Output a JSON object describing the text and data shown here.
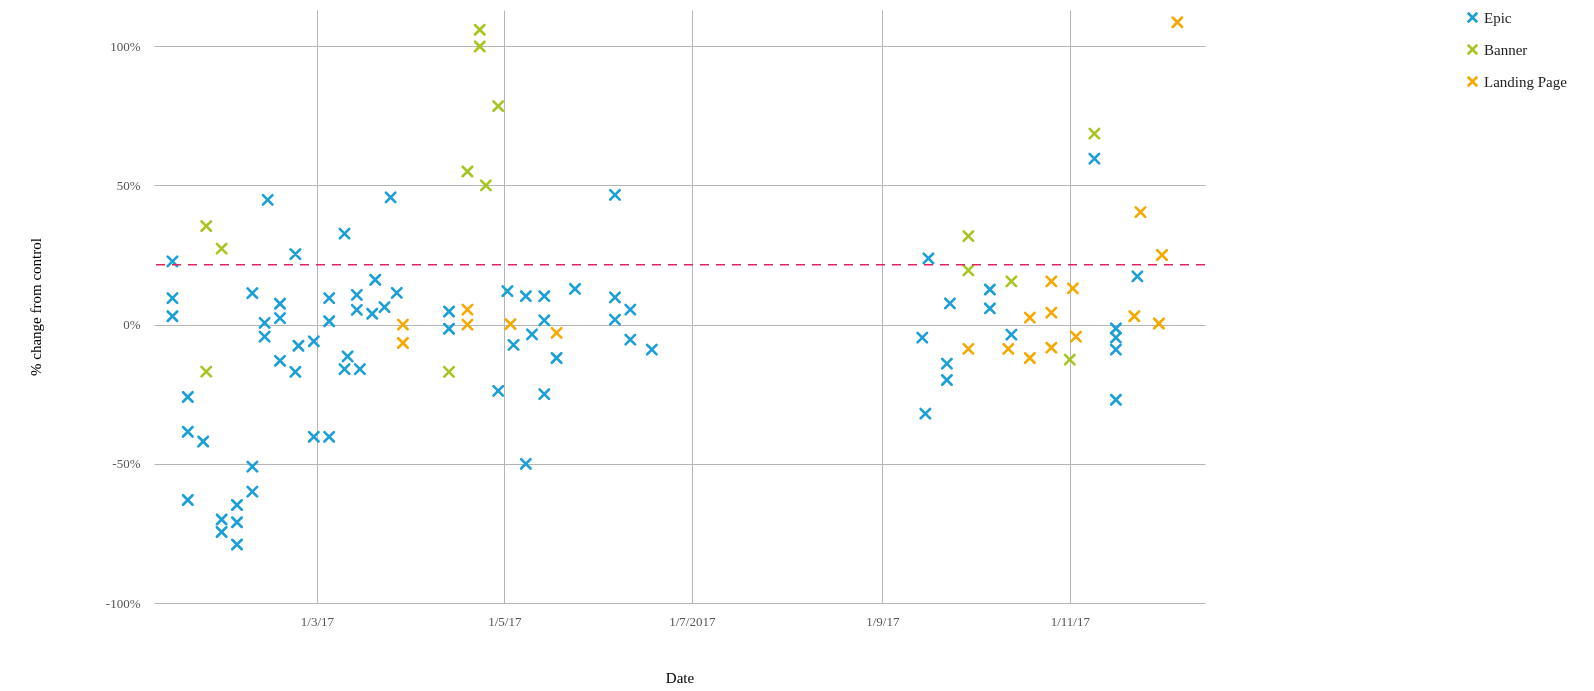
{
  "chart_data": {
    "type": "scatter",
    "xlabel": "Date",
    "ylabel": "% change from control",
    "xlim": [
      "2017-01-07",
      "2017-12-15"
    ],
    "ylim": [
      -100,
      113
    ],
    "xticks": [
      {
        "value": "2017-03-01",
        "label": "1/3/17"
      },
      {
        "value": "2017-05-01",
        "label": "1/5/17"
      },
      {
        "value": "2017-07-01",
        "label": "1/7/2017"
      },
      {
        "value": "2017-09-01",
        "label": "1/9/17"
      },
      {
        "value": "2017-11-01",
        "label": "1/11/17"
      }
    ],
    "yticks": [
      {
        "value": -100,
        "label": "-100%"
      },
      {
        "value": -50,
        "label": "-50%"
      },
      {
        "value": 0,
        "label": "0%"
      },
      {
        "value": 50,
        "label": "50%"
      },
      {
        "value": 100,
        "label": "100%"
      }
    ],
    "grid": true,
    "legend": "top right",
    "marker": "cross",
    "ref_lines": [
      {
        "axis": "y",
        "value": 21.5,
        "label": null,
        "color": "#e0245e",
        "line_style": "dashed"
      }
    ],
    "series": [
      {
        "name": "Epic",
        "color": "#1a9fd6",
        "x": [
          "2017-01-13",
          "2017-01-13",
          "2017-01-13",
          "2017-01-18",
          "2017-01-18",
          "2017-01-18",
          "2017-01-23",
          "2017-01-29",
          "2017-01-29",
          "2017-02-03",
          "2017-02-03",
          "2017-02-03",
          "2017-02-08",
          "2017-02-08",
          "2017-02-08",
          "2017-02-13",
          "2017-02-12",
          "2017-02-12",
          "2017-02-17",
          "2017-02-17",
          "2017-02-17",
          "2017-02-22",
          "2017-02-22",
          "2017-02-23",
          "2017-02-28",
          "2017-02-28",
          "2017-03-05",
          "2017-03-05",
          "2017-03-05",
          "2017-03-10",
          "2017-03-11",
          "2017-03-10",
          "2017-03-15",
          "2017-03-14",
          "2017-03-14",
          "2017-03-19",
          "2017-03-20",
          "2017-03-23",
          "2017-03-25",
          "2017-03-27",
          "2017-04-13",
          "2017-04-13",
          "2017-05-02",
          "2017-05-04",
          "2017-04-29",
          "2017-05-08",
          "2017-05-10",
          "2017-05-08",
          "2017-05-14",
          "2017-05-14",
          "2017-05-14",
          "2017-05-18",
          "2017-05-24",
          "2017-06-06",
          "2017-06-06",
          "2017-06-06",
          "2017-06-11",
          "2017-06-11",
          "2017-06-18",
          "2017-09-16",
          "2017-11-23",
          "2017-10-06",
          "2017-10-06",
          "2017-09-23",
          "2017-09-14",
          "2017-10-13",
          "2017-09-22",
          "2017-09-22",
          "2017-09-15",
          "2017-11-16",
          "2017-11-16",
          "2017-11-16",
          "2017-11-16",
          "2017-11-09"
        ],
        "values": [
          22.7,
          9.5,
          3,
          -26,
          -38.5,
          -63,
          -42,
          -70,
          -74.5,
          -64.8,
          -71,
          -79,
          -51,
          -60,
          11.3,
          44.8,
          0.6,
          -4.3,
          7.5,
          2.3,
          -13,
          25.3,
          -17,
          -7.6,
          -6,
          -40.3,
          -40.3,
          9.5,
          1.2,
          32.7,
          -11.4,
          -16,
          -16,
          10.7,
          5.3,
          3.9,
          16.1,
          6.3,
          45.7,
          11.4,
          4.7,
          -1.5,
          12,
          -7.3,
          -23.8,
          10.2,
          -3.5,
          -50,
          10.2,
          1.5,
          -25,
          -12,
          12.8,
          46.6,
          9.8,
          1.8,
          5.4,
          -5.4,
          -9,
          23.8,
          17.3,
          12.6,
          5.8,
          7.6,
          -4.7,
          -3.6,
          -14,
          -19.9,
          -32,
          -1.4,
          -4.7,
          -9,
          -27,
          59.6
        ]
      },
      {
        "name": "Banner",
        "color": "#a7c520",
        "x": [
          "2017-01-24",
          "2017-01-29",
          "2017-01-24",
          "2017-04-23",
          "2017-04-23",
          "2017-04-29",
          "2017-04-19",
          "2017-04-25",
          "2017-04-13",
          "2017-11-09",
          "2017-09-29",
          "2017-09-29",
          "2017-10-13",
          "2017-11-01"
        ],
        "values": [
          35.4,
          27.3,
          -16.9,
          105.9,
          99.9,
          78.5,
          55,
          50,
          -17,
          68.6,
          31.8,
          19.5,
          15.5,
          -12.6
        ]
      },
      {
        "name": "Landing Page",
        "color": "#f5a800",
        "x": [
          "2017-03-29",
          "2017-03-29",
          "2017-04-19",
          "2017-04-19",
          "2017-05-03",
          "2017-05-18",
          "2017-12-06",
          "2017-11-24",
          "2017-12-01",
          "2017-11-22",
          "2017-11-30",
          "2017-10-26",
          "2017-11-02",
          "2017-10-26",
          "2017-10-19",
          "2017-11-03",
          "2017-10-26",
          "2017-10-19",
          "2017-10-12",
          "2017-09-29"
        ],
        "values": [
          0,
          -6.6,
          5.4,
          0,
          0.2,
          -3,
          108.6,
          40.4,
          25,
          3,
          0.4,
          15.5,
          13,
          4.3,
          2.5,
          -4.3,
          -8.3,
          -12,
          -8.7,
          -8.7
        ]
      }
    ]
  }
}
